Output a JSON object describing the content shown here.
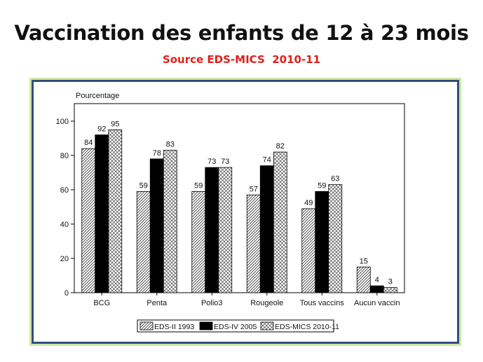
{
  "slide": {
    "title": "Vaccination des enfants de 12 à 23 mois",
    "subtitle": "Source EDS-MICS  2010-11"
  },
  "chart_data": {
    "type": "bar",
    "ylabel": "Pourcentage",
    "xlabel": "",
    "ylim": [
      0,
      100
    ],
    "yticks": [
      0,
      20,
      40,
      60,
      80,
      100
    ],
    "grid": false,
    "legend_position": "bottom",
    "categories": [
      "BCG",
      "Penta",
      "Polio3",
      "Rougeole",
      "Tous vaccins",
      "Aucun vaccin"
    ],
    "series": [
      {
        "name": "EDS-II 1993",
        "values": [
          84,
          59,
          59,
          57,
          49,
          15
        ],
        "pattern": "diagonal-hatch",
        "color": "#ffffff"
      },
      {
        "name": "EDS-IV 2005",
        "values": [
          92,
          78,
          73,
          74,
          59,
          4
        ],
        "pattern": "solid",
        "color": "#000000"
      },
      {
        "name": "EDS-MICS 2010-11",
        "values": [
          95,
          83,
          73,
          82,
          63,
          3
        ],
        "pattern": "cross-hatch",
        "color": "#ffffff"
      }
    ]
  }
}
